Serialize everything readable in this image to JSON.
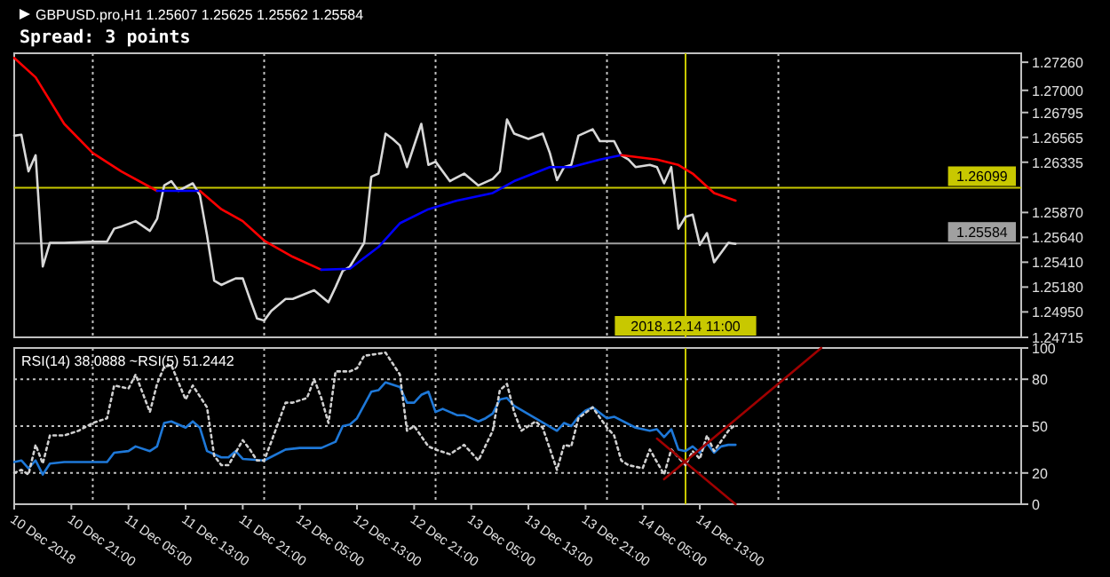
{
  "chart_data": [
    {
      "type": "line",
      "title": "GBPUSD.pro,H1 1.25607 1.25625 1.25562 1.25584",
      "subtitle": "Spread: 3 points",
      "xlim": [
        "2018-12-10T13:00",
        "2018-12-16T10:00"
      ],
      "ylim": [
        1.24715,
        1.27343
      ],
      "tick_labels": "y",
      "yticks": [
        {
          "value": 1.2726,
          "label": "1.27260"
        },
        {
          "value": 1.27,
          "label": "1.27000"
        },
        {
          "value": 1.26795,
          "label": "1.26795"
        },
        {
          "value": 1.26565,
          "label": "1.26565"
        },
        {
          "value": 1.26335,
          "label": "1.26335"
        },
        {
          "value": 1.2587,
          "label": "1.25870"
        },
        {
          "value": 1.2564,
          "label": "1.25640"
        },
        {
          "value": 1.2541,
          "label": "1.25410"
        },
        {
          "value": 1.2518,
          "label": "1.25180"
        },
        {
          "value": 1.2495,
          "label": "1.24950"
        },
        {
          "value": 1.24715,
          "label": "1.24715"
        }
      ],
      "series": [
        {
          "color": "#d8d8d8",
          "x": [
            "2018-12-10T13:00",
            "2018-12-10T14:00",
            "2018-12-10T15:00",
            "2018-12-10T16:00",
            "2018-12-10T17:00",
            "2018-12-10T18:00",
            "2018-12-10T20:00",
            "2018-12-11T00:00",
            "2018-12-11T02:00",
            "2018-12-11T03:00",
            "2018-12-11T04:00",
            "2018-12-11T06:00",
            "2018-12-11T08:00",
            "2018-12-11T09:00",
            "2018-12-11T10:00",
            "2018-12-11T11:00",
            "2018-12-11T12:00",
            "2018-12-11T14:00",
            "2018-12-11T15:00",
            "2018-12-11T16:00",
            "2018-12-11T17:00",
            "2018-12-11T18:00",
            "2018-12-11T20:00",
            "2018-12-11T21:00",
            "2018-12-11T22:00",
            "2018-12-11T23:00",
            "2018-12-12T00:00",
            "2018-12-12T01:00",
            "2018-12-12T03:00",
            "2018-12-12T04:00",
            "2018-12-12T07:00",
            "2018-12-12T09:00",
            "2018-12-12T10:00",
            "2018-12-12T11:00",
            "2018-12-12T12:00",
            "2018-12-12T14:00",
            "2018-12-12T15:00",
            "2018-12-12T16:00",
            "2018-12-12T17:00",
            "2018-12-12T18:00",
            "2018-12-12T19:00",
            "2018-12-12T20:00",
            "2018-12-12T22:00",
            "2018-12-12T23:00",
            "2018-12-13T00:00",
            "2018-12-13T02:00",
            "2018-12-13T04:00",
            "2018-12-13T06:00",
            "2018-12-13T08:00",
            "2018-12-13T09:00",
            "2018-12-13T10:00",
            "2018-12-13T11:00",
            "2018-12-13T13:00",
            "2018-12-13T15:00",
            "2018-12-13T16:00",
            "2018-12-13T17:00",
            "2018-12-13T18:00",
            "2018-12-13T19:00",
            "2018-12-13T20:00",
            "2018-12-13T22:00",
            "2018-12-13T23:00",
            "2018-12-14T01:00",
            "2018-12-14T02:00",
            "2018-12-14T03:00",
            "2018-12-14T04:00",
            "2018-12-14T06:00",
            "2018-12-14T07:00",
            "2018-12-14T08:00",
            "2018-12-14T09:00",
            "2018-12-14T10:00",
            "2018-12-14T11:00",
            "2018-12-14T12:00",
            "2018-12-14T13:00",
            "2018-12-14T14:00",
            "2018-12-14T15:00",
            "2018-12-14T16:00",
            "2018-12-14T17:00",
            "2018-12-14T18:00"
          ],
          "values": [
            1.2658,
            1.2659,
            1.2625,
            1.264,
            1.2537,
            1.2559,
            1.2559,
            1.256,
            1.256,
            1.2572,
            1.2574,
            1.2579,
            1.257,
            1.2581,
            1.2612,
            1.2616,
            1.2607,
            1.2614,
            1.2603,
            1.2566,
            1.2524,
            1.252,
            1.2526,
            1.2526,
            1.2507,
            1.2489,
            1.2487,
            1.2496,
            1.2507,
            1.2507,
            1.2515,
            1.2504,
            1.2518,
            1.2533,
            1.2537,
            1.2559,
            1.262,
            1.2623,
            1.266,
            1.2655,
            1.2649,
            1.2629,
            1.2669,
            1.2631,
            1.2634,
            1.2616,
            1.2623,
            1.2612,
            1.2618,
            1.2625,
            1.2673,
            1.266,
            1.2655,
            1.266,
            1.2642,
            1.2617,
            1.2629,
            1.2631,
            1.2658,
            1.2664,
            1.2653,
            1.2653,
            1.264,
            1.2636,
            1.2629,
            1.2631,
            1.2629,
            1.2614,
            1.2629,
            1.2572,
            1.2583,
            1.2585,
            1.2557,
            1.2568,
            1.2541,
            1.255,
            1.2559,
            1.2558
          ]
        },
        {
          "color": "#ff0000",
          "x": [
            "2018-12-10T13:00",
            "2018-12-10T16:00",
            "2018-12-10T20:00",
            "2018-12-11T00:00",
            "2018-12-11T04:00",
            "2018-12-11T09:00"
          ],
          "values": [
            1.273,
            1.2712,
            1.2669,
            1.2642,
            1.2625,
            1.2607
          ]
        },
        {
          "color": "#0000ff",
          "x": [
            "2018-12-11T09:00",
            "2018-12-11T12:00",
            "2018-12-11T15:00"
          ],
          "values": [
            1.2607,
            1.2607,
            1.2607
          ]
        },
        {
          "color": "#ff0000",
          "x": [
            "2018-12-11T15:00",
            "2018-12-11T18:00",
            "2018-12-11T21:00",
            "2018-12-12T00:00",
            "2018-12-12T04:00",
            "2018-12-12T08:00"
          ],
          "values": [
            1.2607,
            1.259,
            1.2579,
            1.2561,
            1.2546,
            1.2534
          ]
        },
        {
          "color": "#0000ff",
          "x": [
            "2018-12-12T08:00",
            "2018-12-12T12:00",
            "2018-12-12T16:00",
            "2018-12-12T19:00",
            "2018-12-12T23:00",
            "2018-12-13T03:00",
            "2018-12-13T08:00",
            "2018-12-13T11:00",
            "2018-12-13T16:00",
            "2018-12-13T19:00",
            "2018-12-13T23:00",
            "2018-12-14T02:00"
          ],
          "values": [
            1.2534,
            1.2535,
            1.2555,
            1.2577,
            1.259,
            1.2598,
            1.2605,
            1.2616,
            1.2629,
            1.2629,
            1.2636,
            1.264
          ]
        },
        {
          "color": "#ff0000",
          "x": [
            "2018-12-14T02:00",
            "2018-12-14T07:00",
            "2018-12-14T10:00",
            "2018-12-14T12:00",
            "2018-12-14T15:00",
            "2018-12-14T18:00"
          ],
          "values": [
            1.264,
            1.2636,
            1.2631,
            1.2623,
            1.2605,
            1.2598
          ]
        }
      ],
      "ref_lines": [
        {
          "axis": "y",
          "value": 1.26099,
          "label": "1.26099",
          "color": "#c8c800",
          "line_style": "solid"
        },
        {
          "axis": "y",
          "value": 1.25584,
          "label": "1.25584",
          "color": "#a0a0a0",
          "line_style": "solid"
        },
        {
          "axis": "x",
          "value": "2018-12-14T11:00",
          "label": "2018.12.14 11:00",
          "color": "#c8c800",
          "line_style": "solid"
        },
        {
          "axis": "x",
          "value": "2018-12-11T00:00",
          "color": "#c0c0c0",
          "line_style": "dotted"
        },
        {
          "axis": "x",
          "value": "2018-12-12T00:00",
          "color": "#c0c0c0",
          "line_style": "dotted"
        },
        {
          "axis": "x",
          "value": "2018-12-13T00:00",
          "color": "#c0c0c0",
          "line_style": "dotted"
        },
        {
          "axis": "x",
          "value": "2018-12-14T00:00",
          "color": "#c0c0c0",
          "line_style": "dotted"
        },
        {
          "axis": "x",
          "value": "2018-12-15T00:00",
          "color": "#c0c0c0",
          "line_style": "dotted"
        }
      ]
    },
    {
      "type": "line",
      "title": "RSI(14) 38.0888  ~RSI(5) 51.2442",
      "xlim": [
        "2018-12-10T13:00",
        "2018-12-16T10:00"
      ],
      "ylim": [
        0,
        100
      ],
      "yticks": [
        0,
        20,
        50,
        80,
        100
      ],
      "xticks": [
        {
          "value": "2018-12-10T13:00",
          "label": "10 Dec 2018"
        },
        {
          "value": "2018-12-10T21:00",
          "label": "10 Dec 21:00"
        },
        {
          "value": "2018-12-11T05:00",
          "label": "11 Dec 05:00"
        },
        {
          "value": "2018-12-11T13:00",
          "label": "11 Dec 13:00"
        },
        {
          "value": "2018-12-11T21:00",
          "label": "11 Dec 21:00"
        },
        {
          "value": "2018-12-12T05:00",
          "label": "12 Dec 05:00"
        },
        {
          "value": "2018-12-12T13:00",
          "label": "12 Dec 13:00"
        },
        {
          "value": "2018-12-12T21:00",
          "label": "12 Dec 21:00"
        },
        {
          "value": "2018-12-13T05:00",
          "label": "13 Dec 05:00"
        },
        {
          "value": "2018-12-13T13:00",
          "label": "13 Dec 13:00"
        },
        {
          "value": "2018-12-13T21:00",
          "label": "13 Dec 21:00"
        },
        {
          "value": "2018-12-14T05:00",
          "label": "14 Dec 05:00"
        },
        {
          "value": "2018-12-14T13:00",
          "label": "14 Dec 13:00"
        }
      ],
      "series": [
        {
          "color": "#1e78d8",
          "x": [
            "2018-12-10T13:00",
            "2018-12-10T14:00",
            "2018-12-10T15:00",
            "2018-12-10T16:00",
            "2018-12-10T17:00",
            "2018-12-10T18:00",
            "2018-12-10T20:00",
            "2018-12-11T02:00",
            "2018-12-11T03:00",
            "2018-12-11T05:00",
            "2018-12-11T06:00",
            "2018-12-11T08:00",
            "2018-12-11T09:00",
            "2018-12-11T10:00",
            "2018-12-11T11:00",
            "2018-12-11T13:00",
            "2018-12-11T14:00",
            "2018-12-11T15:00",
            "2018-12-11T16:00",
            "2018-12-11T18:00",
            "2018-12-11T19:00",
            "2018-12-11T20:00",
            "2018-12-11T21:00",
            "2018-12-12T00:00",
            "2018-12-12T03:00",
            "2018-12-12T05:00",
            "2018-12-12T08:00",
            "2018-12-12T10:00",
            "2018-12-12T11:00",
            "2018-12-12T12:00",
            "2018-12-12T13:00",
            "2018-12-12T15:00",
            "2018-12-12T16:00",
            "2018-12-12T17:00",
            "2018-12-12T19:00",
            "2018-12-12T20:00",
            "2018-12-12T21:00",
            "2018-12-12T22:00",
            "2018-12-12T23:00",
            "2018-12-13T00:00",
            "2018-12-13T01:00",
            "2018-12-13T03:00",
            "2018-12-13T04:00",
            "2018-12-13T06:00",
            "2018-12-13T07:00",
            "2018-12-13T08:00",
            "2018-12-13T09:00",
            "2018-12-13T10:00",
            "2018-12-13T11:00",
            "2018-12-13T17:00",
            "2018-12-13T18:00",
            "2018-12-13T19:00",
            "2018-12-13T20:00",
            "2018-12-13T21:00",
            "2018-12-13T22:00",
            "2018-12-14T00:00",
            "2018-12-14T01:00",
            "2018-12-14T04:00",
            "2018-12-14T06:00",
            "2018-12-14T07:00",
            "2018-12-14T08:00",
            "2018-12-14T09:00",
            "2018-12-14T10:00",
            "2018-12-14T11:00",
            "2018-12-14T12:00",
            "2018-12-14T13:00",
            "2018-12-14T14:00",
            "2018-12-14T15:00",
            "2018-12-14T16:00",
            "2018-12-14T17:00",
            "2018-12-14T18:00"
          ],
          "values": [
            27,
            28,
            23,
            28,
            19,
            26,
            27,
            27,
            33,
            34,
            37,
            34,
            37,
            52,
            53,
            49,
            53,
            49,
            34,
            30,
            30,
            34,
            29,
            28,
            35,
            36,
            36,
            40,
            50,
            51,
            55,
            72,
            73,
            78,
            75,
            65,
            65,
            70,
            72,
            59,
            61,
            57,
            57,
            53,
            55,
            58,
            67,
            68,
            63,
            47,
            52,
            50,
            56,
            60,
            62,
            55,
            56,
            49,
            47,
            48,
            43,
            48,
            35,
            34,
            37,
            33,
            39,
            33,
            37,
            38,
            38
          ]
        },
        {
          "color": "#d0d0d0",
          "line_style": "dotted",
          "x": [
            "2018-12-10T13:00",
            "2018-12-10T14:00",
            "2018-12-10T15:00",
            "2018-12-10T16:00",
            "2018-12-10T17:00",
            "2018-12-10T18:00",
            "2018-12-10T20:00",
            "2018-12-10T22:00",
            "2018-12-11T00:00",
            "2018-12-11T02:00",
            "2018-12-11T03:00",
            "2018-12-11T05:00",
            "2018-12-11T06:00",
            "2018-12-11T08:00",
            "2018-12-11T09:00",
            "2018-12-11T10:00",
            "2018-12-11T11:00",
            "2018-12-11T13:00",
            "2018-12-11T14:00",
            "2018-12-11T16:00",
            "2018-12-11T17:00",
            "2018-12-11T18:00",
            "2018-12-11T19:00",
            "2018-12-11T21:00",
            "2018-12-11T22:00",
            "2018-12-11T23:00",
            "2018-12-12T00:00",
            "2018-12-12T01:00",
            "2018-12-12T03:00",
            "2018-12-12T04:00",
            "2018-12-12T06:00",
            "2018-12-12T07:00",
            "2018-12-12T08:00",
            "2018-12-12T09:00",
            "2018-12-12T10:00",
            "2018-12-12T12:00",
            "2018-12-12T13:00",
            "2018-12-12T14:00",
            "2018-12-12T17:00",
            "2018-12-12T19:00",
            "2018-12-12T20:00",
            "2018-12-12T21:00",
            "2018-12-12T23:00",
            "2018-12-13T00:00",
            "2018-12-13T02:00",
            "2018-12-13T04:00",
            "2018-12-13T06:00",
            "2018-12-13T08:00",
            "2018-12-13T09:00",
            "2018-12-13T10:00",
            "2018-12-13T11:00",
            "2018-12-13T12:00",
            "2018-12-13T13:00",
            "2018-12-13T14:00",
            "2018-12-13T15:00",
            "2018-12-13T17:00",
            "2018-12-13T18:00",
            "2018-12-13T19:00",
            "2018-12-13T20:00",
            "2018-12-13T22:00",
            "2018-12-14T00:00",
            "2018-12-14T01:00",
            "2018-12-14T02:00",
            "2018-12-14T03:00",
            "2018-12-14T05:00",
            "2018-12-14T06:00",
            "2018-12-14T08:00",
            "2018-12-14T09:00",
            "2018-12-14T11:00",
            "2018-12-14T12:00",
            "2018-12-14T13:00",
            "2018-12-14T14:00",
            "2018-12-14T15:00",
            "2018-12-14T17:00",
            "2018-12-14T18:00"
          ],
          "values": [
            20,
            22,
            19,
            38,
            26,
            44,
            44,
            47,
            52,
            55,
            76,
            74,
            83,
            59,
            77,
            88,
            89,
            67,
            76,
            62,
            31,
            25,
            25,
            41,
            35,
            28,
            28,
            40,
            65,
            65,
            68,
            80,
            68,
            52,
            85,
            85,
            87,
            95,
            97,
            83,
            47,
            50,
            37,
            35,
            32,
            38,
            28,
            47,
            73,
            77,
            59,
            47,
            50,
            53,
            49,
            22,
            38,
            37,
            55,
            62,
            49,
            44,
            28,
            25,
            23,
            35,
            19,
            35,
            25,
            34,
            29,
            44,
            34,
            47,
            51
          ]
        },
        {
          "color": "#a00000",
          "x": [
            "2018-12-14T08:00",
            "2018-12-15T06:00"
          ],
          "values": [
            16,
            100
          ]
        },
        {
          "color": "#a00000",
          "x": [
            "2018-12-14T07:00",
            "2018-12-14T18:00"
          ],
          "values": [
            42,
            0
          ]
        }
      ],
      "ref_lines": [
        {
          "axis": "y",
          "value": 80,
          "color": "#c0c0c0",
          "line_style": "dotted"
        },
        {
          "axis": "y",
          "value": 50,
          "color": "#c0c0c0",
          "line_style": "dotted"
        },
        {
          "axis": "y",
          "value": 20,
          "color": "#c0c0c0",
          "line_style": "dotted"
        },
        {
          "axis": "x",
          "value": "2018-12-14T11:00",
          "color": "#c8c800",
          "line_style": "solid"
        },
        {
          "axis": "x",
          "value": "2018-12-11T00:00",
          "color": "#c0c0c0",
          "line_style": "dotted"
        },
        {
          "axis": "x",
          "value": "2018-12-12T00:00",
          "color": "#c0c0c0",
          "line_style": "dotted"
        },
        {
          "axis": "x",
          "value": "2018-12-13T00:00",
          "color": "#c0c0c0",
          "line_style": "dotted"
        },
        {
          "axis": "x",
          "value": "2018-12-14T00:00",
          "color": "#c0c0c0",
          "line_style": "dotted"
        },
        {
          "axis": "x",
          "value": "2018-12-15T00:00",
          "color": "#c0c0c0",
          "line_style": "dotted"
        }
      ]
    }
  ]
}
